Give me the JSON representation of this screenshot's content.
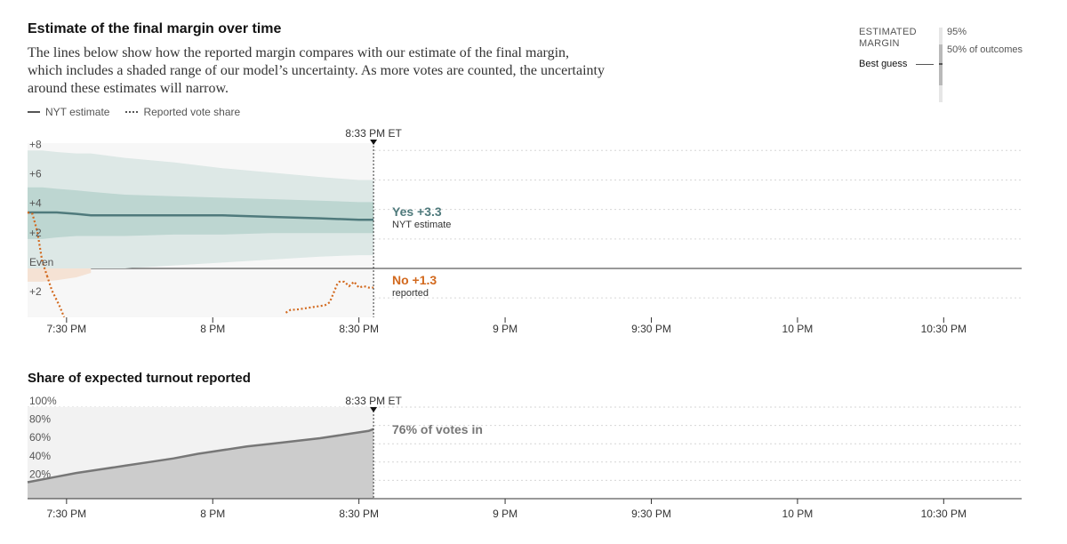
{
  "header": {
    "title": "Estimate of the final margin over time",
    "description": "The lines below show how the reported margin compares with our estimate of the final margin, which includes a shaded range of our model’s uncertainty. As more votes are counted, the uncertainty around these estimates will narrow."
  },
  "legend": {
    "estimate_label": "NYT estimate",
    "reported_label": "Reported vote share"
  },
  "key": {
    "header_line1": "ESTIMATED",
    "header_line2": "MARGIN",
    "best_guess": "Best guess",
    "p95": "95%",
    "p50": "50% of outcomes"
  },
  "margin_chart": {
    "marker_label": "8:33 PM ET",
    "estimate_callout": {
      "value": "Yes +3.3",
      "sub": "NYT estimate"
    },
    "reported_callout": {
      "value": "No +1.3",
      "sub": "reported"
    }
  },
  "turnout_chart": {
    "title": "Share of expected turnout reported",
    "marker_label": "8:33 PM ET",
    "callout": "76% of votes in"
  },
  "chart_data": [
    {
      "type": "area",
      "title": "Estimate of the final margin over time",
      "x_ticks": [
        "7:30 PM",
        "8 PM",
        "8:30 PM",
        "9 PM",
        "9:30 PM",
        "10 PM",
        "10:30 PM"
      ],
      "y_ticks": [
        "+8",
        "+6",
        "+4",
        "+2",
        "Even",
        "+2"
      ],
      "ylim": [
        -3.3,
        8.5
      ],
      "xlim_minutes": [
        0,
        204
      ],
      "x_tick_minutes": [
        8,
        38,
        68,
        98,
        128,
        158,
        188
      ],
      "marker_minute": 71,
      "grid": true,
      "colors": {
        "estimate": "#4f7a7c",
        "band95": "#dde8e6",
        "band50": "#bdd6d1",
        "reported": "#d2691e",
        "no_band": "#f5e2d4"
      },
      "series": [
        {
          "name": "NYT estimate",
          "x": [
            0,
            3,
            6,
            10,
            13,
            20,
            30,
            40,
            50,
            60,
            68,
            71
          ],
          "y": [
            3.8,
            3.8,
            3.8,
            3.7,
            3.6,
            3.6,
            3.6,
            3.6,
            3.5,
            3.4,
            3.3,
            3.3
          ],
          "upper95": [
            8,
            8,
            7.9,
            7.8,
            7.8,
            7.5,
            7.2,
            6.8,
            6.5,
            6.2,
            6.0,
            6.0
          ],
          "lower95": [
            -0.9,
            -0.9,
            -0.8,
            -0.6,
            -0.3,
            0,
            0.2,
            0.4,
            0.6,
            0.8,
            0.9,
            0.9
          ],
          "upper50": [
            5.5,
            5.5,
            5.4,
            5.3,
            5.2,
            5.0,
            4.9,
            4.8,
            4.7,
            4.6,
            4.5,
            4.5
          ],
          "lower50": [
            2.0,
            2.0,
            2.1,
            2.2,
            2.2,
            2.2,
            2.3,
            2.3,
            2.4,
            2.4,
            2.4,
            2.4
          ]
        },
        {
          "name": "Reported vote share",
          "segments": [
            {
              "x": [
                0,
                1,
                2,
                2.5,
                3,
                4,
                5,
                6.5,
                7.5
              ],
              "y": [
                3.8,
                3.7,
                2.5,
                1.5,
                0.5,
                -0.5,
                -1.5,
                -2.5,
                -3.3
              ]
            },
            {
              "x": [
                53,
                54,
                55,
                57,
                59,
                61,
                62,
                63,
                63.5,
                64,
                65,
                66,
                67,
                68,
                69,
                70,
                71
              ],
              "y": [
                -3.0,
                -2.8,
                -2.8,
                -2.7,
                -2.6,
                -2.5,
                -2.3,
                -1.5,
                -1.1,
                -0.9,
                -0.9,
                -1.2,
                -0.9,
                -1.3,
                -1.2,
                -1.3,
                -1.3
              ]
            }
          ]
        }
      ]
    },
    {
      "type": "area",
      "title": "Share of expected turnout reported",
      "x_ticks": [
        "7:30 PM",
        "8 PM",
        "8:30 PM",
        "9 PM",
        "9:30 PM",
        "10 PM",
        "10:30 PM"
      ],
      "y_ticks": [
        "100%",
        "80%",
        "60%",
        "40%",
        "20%"
      ],
      "ylim": [
        0,
        100
      ],
      "marker_minute": 71,
      "grid": true,
      "series": [
        {
          "name": "Share of expected turnout reported",
          "x": [
            0,
            5,
            10,
            15,
            20,
            25,
            30,
            35,
            40,
            45,
            50,
            55,
            60,
            65,
            70,
            71
          ],
          "y": [
            18,
            23,
            28,
            32,
            36,
            40,
            44,
            49,
            53,
            57,
            60,
            63,
            66,
            70,
            74,
            76
          ]
        }
      ]
    }
  ]
}
